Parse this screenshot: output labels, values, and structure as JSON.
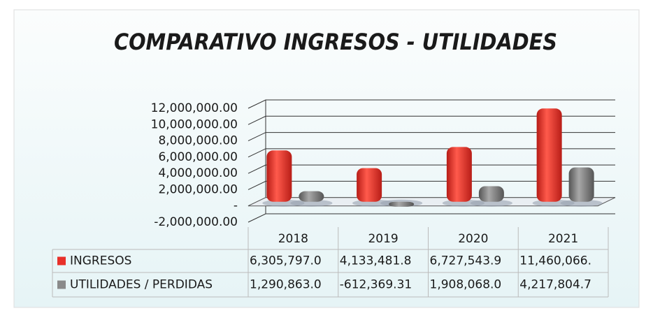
{
  "chart_data": {
    "type": "bar",
    "title": "COMPARATIVO INGRESOS - UTILIDADES",
    "categories": [
      "2018",
      "2019",
      "2020",
      "2021"
    ],
    "series": [
      {
        "name": "INGRESOS",
        "color": "#e8302a",
        "values": [
          6305797.0,
          4133481.8,
          6727543.9,
          11460066
        ],
        "value_labels": [
          "6,305,797.0",
          "4,133,481.8",
          "6,727,543.9",
          "11,460,066."
        ]
      },
      {
        "name": "UTILIDADES / PERDIDAS",
        "color": "#8a8a8a",
        "values": [
          1290863.0,
          -612369.31,
          1908068.0,
          4217804.7
        ],
        "value_labels": [
          "1,290,863.0",
          "-612,369.31",
          "1,908,068.0",
          "4,217,804.7"
        ]
      }
    ],
    "ylim": [
      -2000000,
      12000000
    ],
    "yticks": [
      {
        "value": -2000000,
        "label": "-2,000,000.00"
      },
      {
        "value": 0,
        "label": "-"
      },
      {
        "value": 2000000,
        "label": "2,000,000.00"
      },
      {
        "value": 4000000,
        "label": "4,000,000.00"
      },
      {
        "value": 6000000,
        "label": "6,000,000.00"
      },
      {
        "value": 8000000,
        "label": "8,000,000.00"
      },
      {
        "value": 10000000,
        "label": "10,000,000.00"
      },
      {
        "value": 12000000,
        "label": "12,000,000.00"
      }
    ],
    "grid": true
  }
}
